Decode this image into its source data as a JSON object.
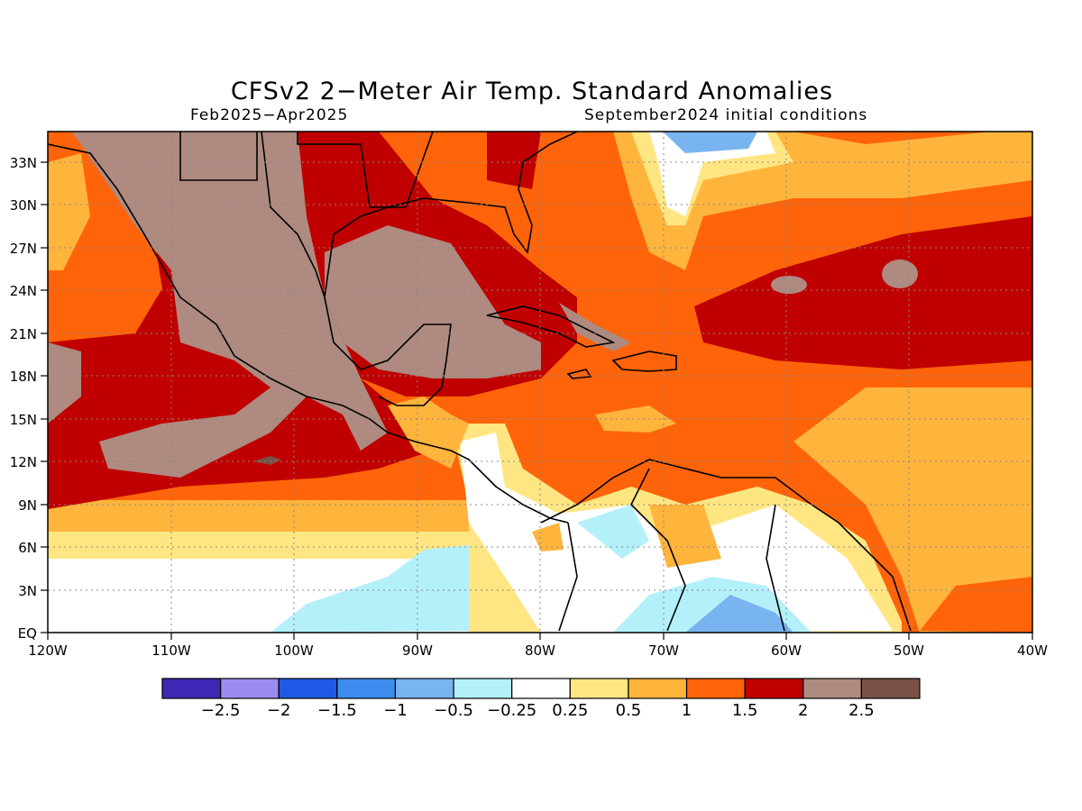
{
  "title": "CFSv2 2−Meter Air Temp. Standard Anomalies",
  "period": "Feb2025−Apr2025",
  "initial_conditions": "September2024 initial conditions",
  "map": {
    "lon_labels": [
      "120W",
      "110W",
      "100W",
      "90W",
      "80W",
      "70W",
      "60W",
      "50W",
      "40W"
    ],
    "lat_labels": [
      "EQ",
      "3N",
      "6N",
      "9N",
      "12N",
      "15N",
      "18N",
      "21N",
      "24N",
      "27N",
      "30N",
      "33N"
    ]
  },
  "colorbar": {
    "labels": [
      "−2.5",
      "−2",
      "−1.5",
      "−1",
      "−0.5",
      "−0.25",
      "0.25",
      "0.5",
      "1",
      "1.5",
      "2",
      "2.5"
    ],
    "colors": [
      "#3c28b4",
      "#9b8cf0",
      "#1e5ae6",
      "#3c8cf0",
      "#78b4f0",
      "#b4f0fa",
      "#ffffff",
      "#ffe682",
      "#ffb43c",
      "#ff640a",
      "#c00000",
      "#ae8a80",
      "#7a5045"
    ]
  }
}
